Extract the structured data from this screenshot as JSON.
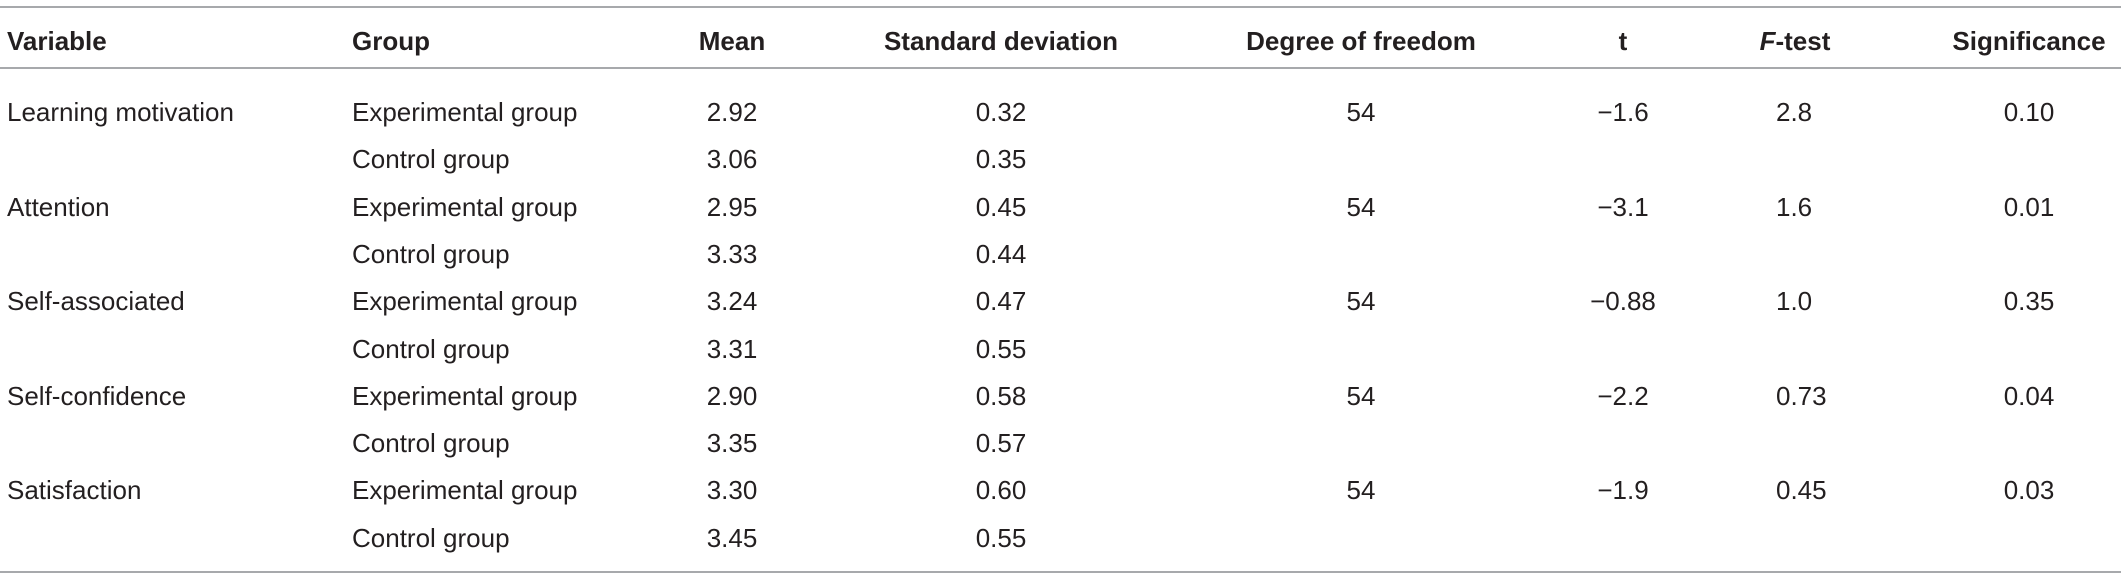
{
  "table": {
    "columns": [
      "Variable",
      "Group",
      "Mean",
      "Standard deviation",
      "Degree of freedom",
      "t",
      "F-test",
      "Significance"
    ],
    "rows": [
      [
        "Learning motivation",
        "Experimental group",
        "2.92",
        "0.32",
        "54",
        "−1.6",
        "2.8",
        "0.10"
      ],
      [
        null,
        "Control group",
        "3.06",
        "0.35",
        null,
        null,
        null,
        null
      ],
      [
        "Attention",
        "Experimental group",
        "2.95",
        "0.45",
        "54",
        "−3.1",
        "1.6",
        "0.01"
      ],
      [
        null,
        "Control group",
        "3.33",
        "0.44",
        null,
        null,
        null,
        null
      ],
      [
        "Self-associated",
        "Experimental group",
        "3.24",
        "0.47",
        "54",
        "−0.88",
        "1.0",
        "0.35"
      ],
      [
        null,
        "Control group",
        "3.31",
        "0.55",
        null,
        null,
        null,
        null
      ],
      [
        "Self-confidence",
        "Experimental group",
        "2.90",
        "0.58",
        "54",
        "−2.2",
        "0.73",
        "0.04"
      ],
      [
        null,
        "Control group",
        "3.35",
        "0.57",
        null,
        null,
        null,
        null
      ],
      [
        "Satisfaction",
        "Experimental group",
        "3.30",
        "0.60",
        "54",
        "−1.9",
        "0.45",
        "0.03"
      ],
      [
        null,
        "Control group",
        "3.45",
        "0.55",
        null,
        null,
        null,
        null
      ]
    ]
  }
}
